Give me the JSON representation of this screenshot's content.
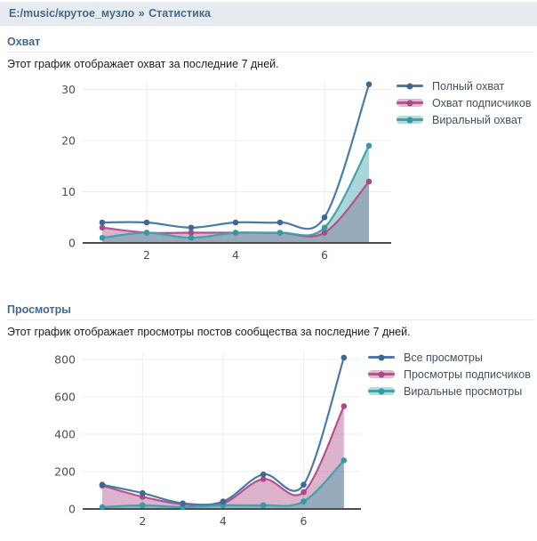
{
  "header": {
    "breadcrumb_link": "E:/music/крутое_музло",
    "separator": "»",
    "current": "Статистика"
  },
  "colors": {
    "accent": "#45688e",
    "header_bg": "#e8ecf1",
    "axis": "#4d4d4d",
    "grid": "#ededed",
    "blue": "#4c79a8",
    "pink": "#b2548f",
    "teal": "#42a2ab"
  },
  "chart_data": [
    {
      "type": "area",
      "title": "Охват",
      "description": "Этот график отображает охват за последние 7 дней.",
      "x": [
        1,
        2,
        3,
        4,
        5,
        6,
        7
      ],
      "xticks": [
        2,
        4,
        6
      ],
      "yticks": [
        0,
        10,
        20,
        30
      ],
      "xlim": [
        1,
        7
      ],
      "ylim": [
        0,
        33
      ],
      "grid": true,
      "legend_position": "right",
      "series": [
        {
          "name": "Полный охват",
          "style": "line",
          "color": "#4c79a8",
          "dot": "#3d6795",
          "values": [
            4,
            4,
            3,
            4,
            4,
            5,
            31
          ]
        },
        {
          "name": "Охват подписчиков",
          "style": "area",
          "color": "#b2548f",
          "dot": "#a84b87",
          "fill": "rgba(178,84,143,0.45)",
          "fill_solid": "#e2b9d3",
          "values": [
            3,
            2,
            2,
            2,
            2,
            2,
            12
          ]
        },
        {
          "name": "Виральный охват",
          "style": "area",
          "color": "#42a2ab",
          "dot": "#3598a2",
          "fill": "rgba(66,162,171,0.45)",
          "fill_solid": "#b4dbde",
          "values": [
            1,
            2,
            1,
            2,
            2,
            3,
            19
          ]
        }
      ]
    },
    {
      "type": "area",
      "title": "Просмотры",
      "description": "Этот график отображает просмотры постов сообщества за последние 7 дней.",
      "x": [
        1,
        2,
        3,
        4,
        5,
        6,
        7
      ],
      "xticks": [
        2,
        4,
        6
      ],
      "yticks": [
        0,
        200,
        400,
        600,
        800
      ],
      "xlim": [
        1,
        7
      ],
      "ylim": [
        0,
        840
      ],
      "grid": true,
      "legend_position": "right",
      "series": [
        {
          "name": "Все просмотры",
          "style": "line",
          "color": "#4c79a8",
          "dot": "#3d6795",
          "values": [
            130,
            85,
            30,
            40,
            185,
            130,
            810
          ]
        },
        {
          "name": "Просмотры подписчиков",
          "style": "area",
          "color": "#b2548f",
          "dot": "#a84b87",
          "fill": "rgba(178,84,143,0.45)",
          "fill_solid": "#e2b9d3",
          "values": [
            125,
            65,
            25,
            30,
            160,
            90,
            550
          ]
        },
        {
          "name": "Виральные просмотры",
          "style": "area",
          "color": "#42a2ab",
          "dot": "#3598a2",
          "fill": "rgba(66,162,171,0.45)",
          "fill_solid": "#b4dbde",
          "values": [
            10,
            20,
            10,
            20,
            20,
            40,
            260
          ]
        }
      ]
    }
  ]
}
